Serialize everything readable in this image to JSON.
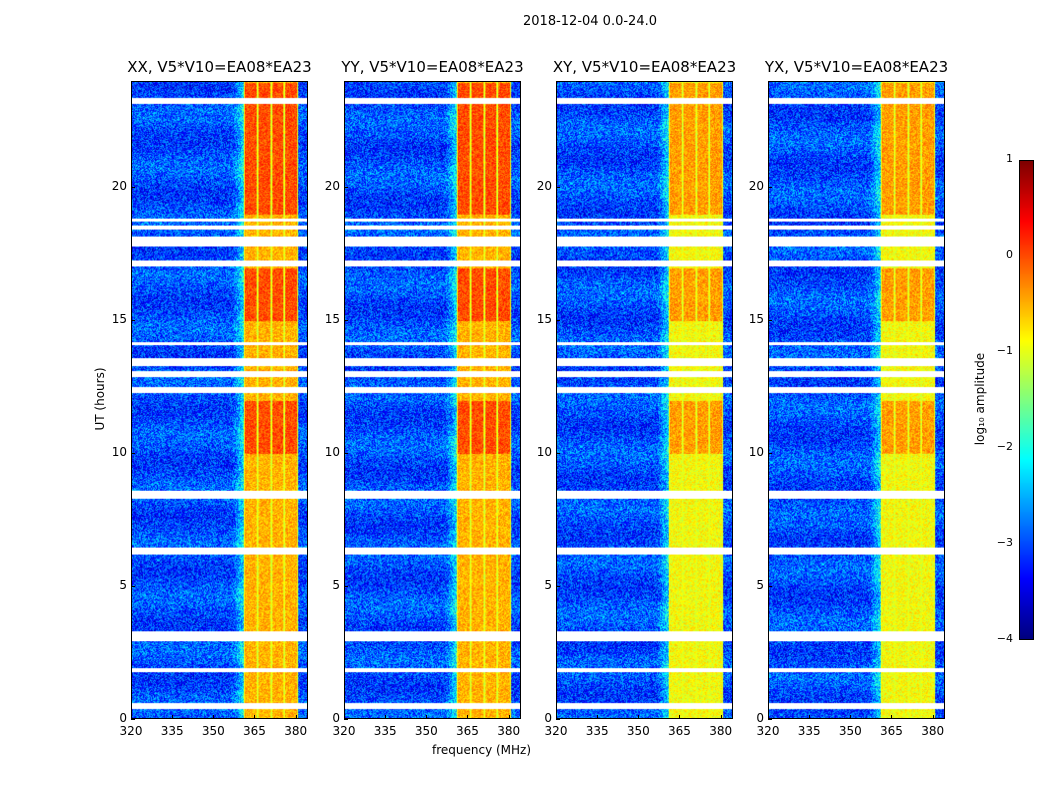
{
  "figure": {
    "suptitle": "2018-12-04 0.0-24.0"
  },
  "chart_data": {
    "type": "heatmap",
    "xlabel": "frequency (MHz)",
    "ylabel": "UT (hours)",
    "xlim": [
      320,
      384.5
    ],
    "ylim": [
      0,
      24
    ],
    "xticks": [
      "320",
      "335",
      "350",
      "365",
      "380"
    ],
    "xtick_values": [
      320,
      335,
      350,
      365,
      380
    ],
    "yticks": [
      "0",
      "5",
      "10",
      "15",
      "20"
    ],
    "ytick_values": [
      0,
      5,
      10,
      15,
      20
    ],
    "panels": [
      {
        "title": "XX, V5*V10=EA08*EA23"
      },
      {
        "title": "YY, V5*V10=EA08*EA23"
      },
      {
        "title": "XY, V5*V10=EA08*EA23"
      },
      {
        "title": "YX, V5*V10=EA08*EA23"
      }
    ],
    "background_log10_amplitude": -3,
    "rfi_band_mhz": [
      361,
      381
    ],
    "rfi_band_log10_amplitude": -0.5,
    "flagged_hours": [
      [
        23.2,
        23.4
      ],
      [
        18.75,
        18.85
      ],
      [
        18.45,
        18.6
      ],
      [
        17.8,
        18.2
      ],
      [
        17.05,
        17.3
      ],
      [
        14.1,
        14.2
      ],
      [
        13.3,
        13.6
      ],
      [
        12.9,
        13.1
      ],
      [
        12.3,
        12.5
      ],
      [
        8.3,
        8.6
      ],
      [
        6.2,
        6.45
      ],
      [
        2.9,
        3.3
      ],
      [
        1.75,
        1.9
      ],
      [
        0.35,
        0.6
      ]
    ],
    "colorbar": {
      "label": "log₁₀ amplitude",
      "range": [
        -4,
        1
      ],
      "ticks": [
        "1",
        "0",
        "−1",
        "−2",
        "−3",
        "−4"
      ],
      "tick_values": [
        1,
        0,
        -1,
        -2,
        -3,
        -4
      ],
      "colormap": "jet"
    }
  }
}
